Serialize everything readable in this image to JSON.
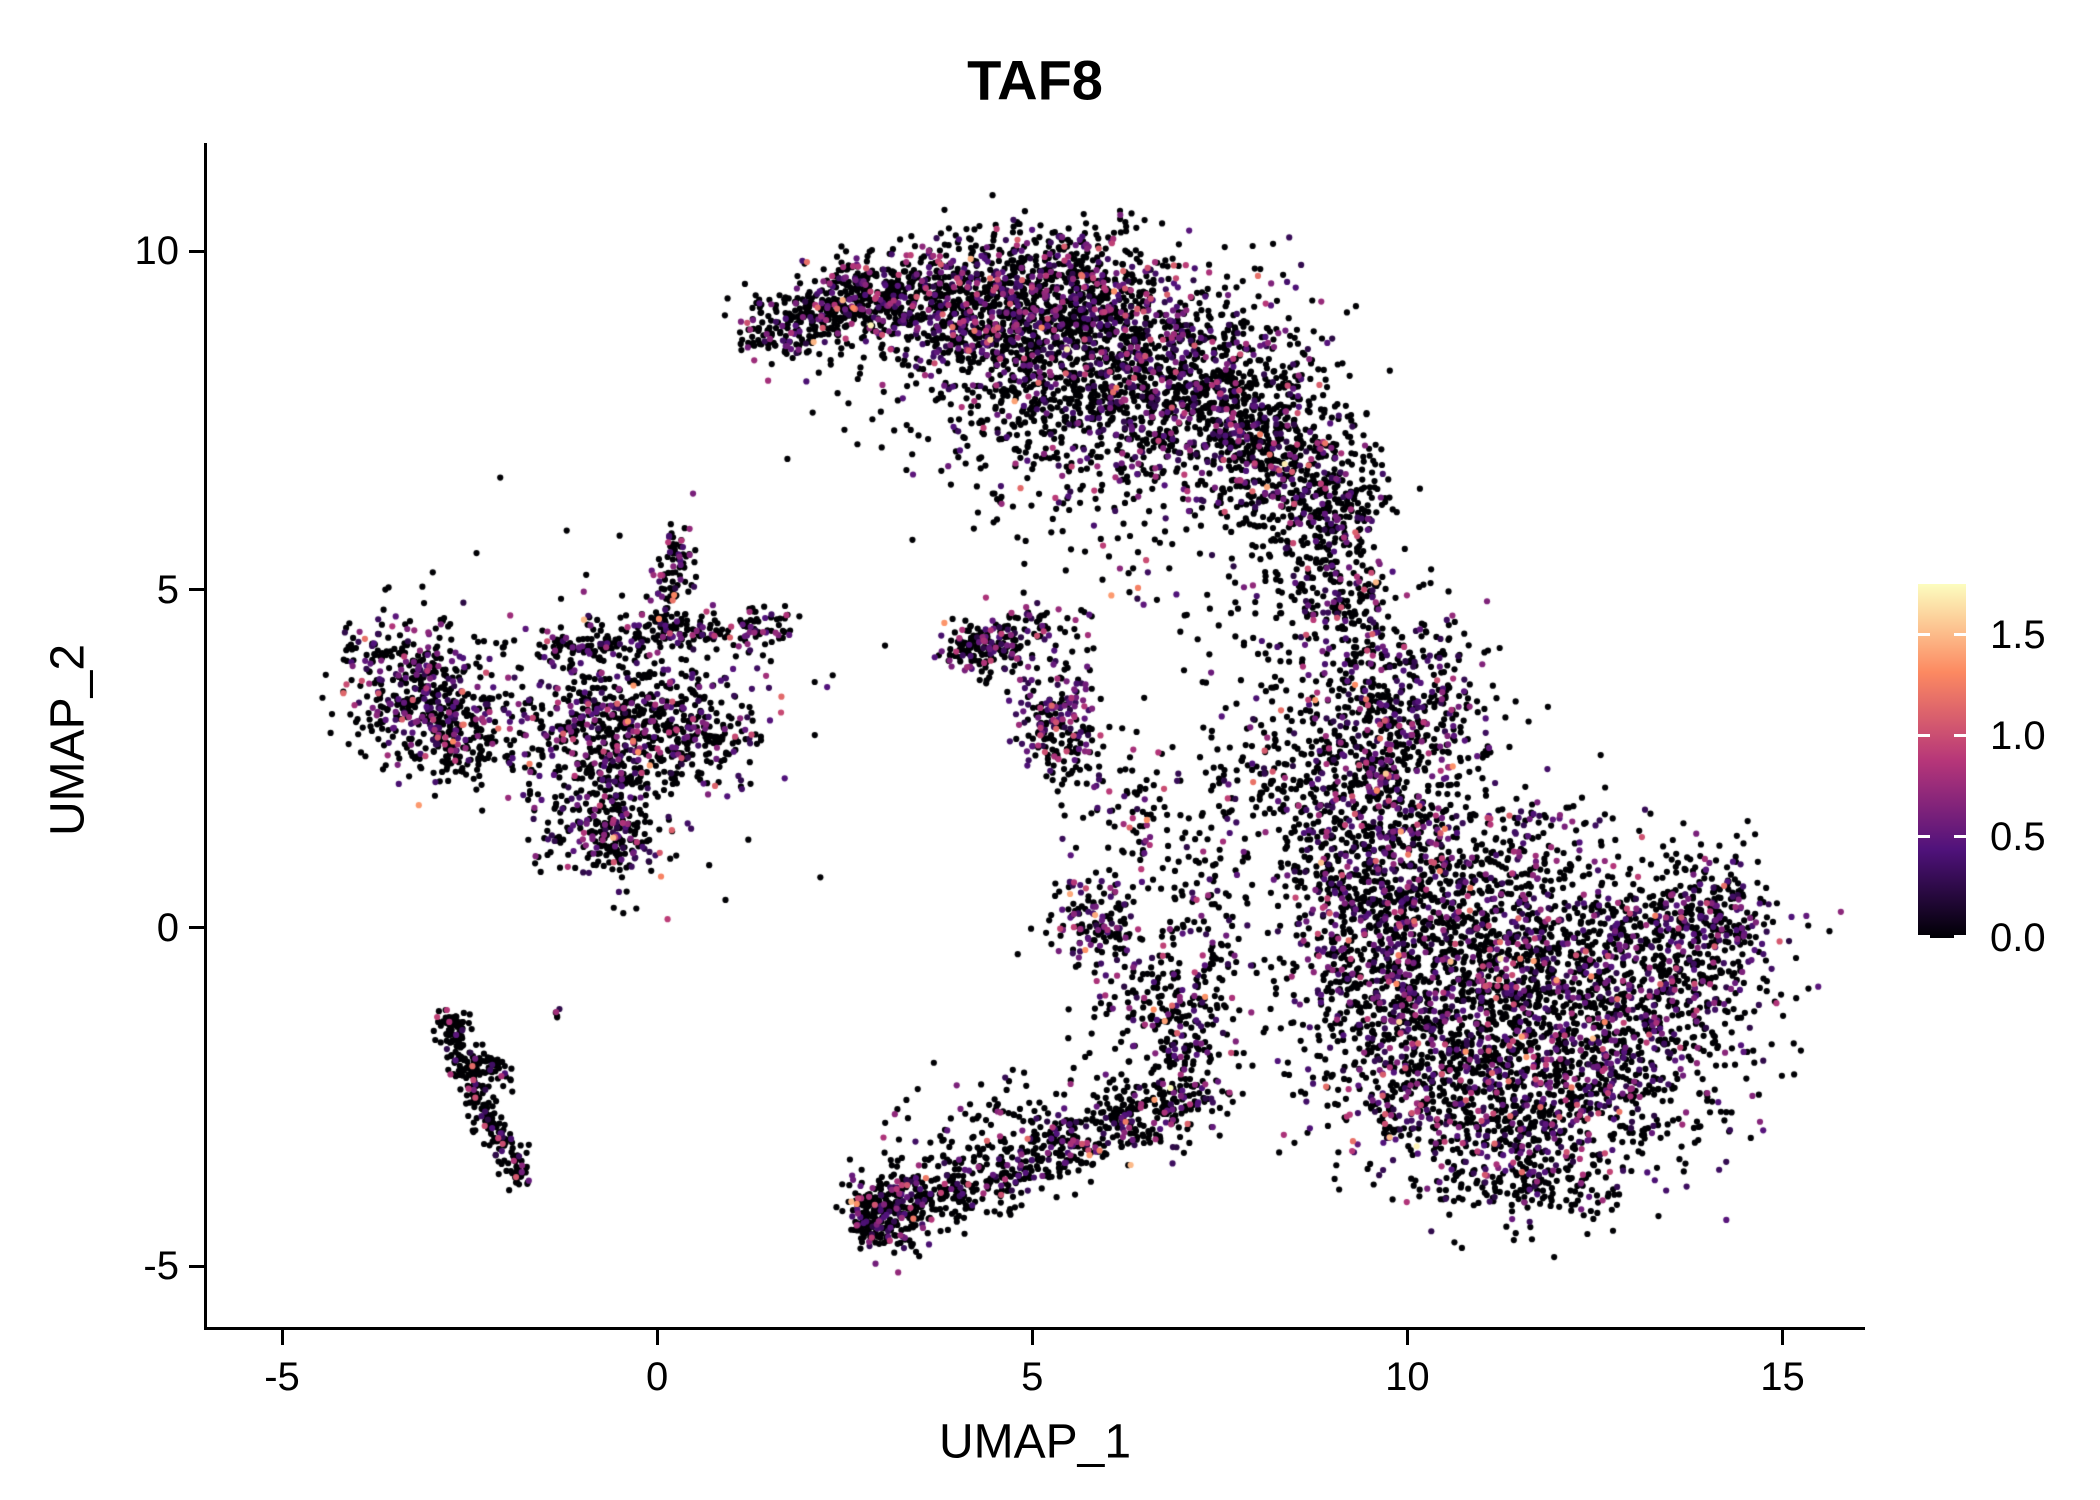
{
  "title": "TAF8",
  "axes": {
    "x": {
      "label": "UMAP_1",
      "ticks": [
        "-5",
        "0",
        "5",
        "10",
        "15"
      ],
      "tick_values": [
        -5,
        0,
        5,
        10,
        15
      ]
    },
    "y": {
      "label": "UMAP_2",
      "ticks": [
        "10",
        "5",
        "0",
        "-5"
      ],
      "tick_values": [
        10,
        5,
        0,
        -5
      ]
    }
  },
  "legend": {
    "ticks": [
      "1.5",
      "1.0",
      "0.5",
      "0.0"
    ],
    "tick_values": [
      1.5,
      1.0,
      0.5,
      0.0
    ],
    "vmin": 0,
    "vmax": 1.75
  },
  "colors": {
    "background": "#ffffff",
    "axis": "#000000",
    "text": "#000000",
    "point_zero": "#000004",
    "colormap": [
      [
        0,
        "#000004"
      ],
      [
        0.25,
        "#50127b"
      ],
      [
        0.5,
        "#b63679"
      ],
      [
        0.75,
        "#fc8961"
      ],
      [
        1,
        "#fcfdbf"
      ]
    ]
  },
  "chart_data": {
    "type": "scatter",
    "title": "TAF8",
    "xlabel": "UMAP_1",
    "ylabel": "UMAP_2",
    "xlim": [
      -6.0,
      16.1
    ],
    "ylim": [
      -5.9,
      11.6
    ],
    "grid": false,
    "legend_position": "right",
    "color_scale": {
      "name": "magma-like",
      "domain": [
        0,
        1.75
      ]
    },
    "point_radius_px": 3.1,
    "seed": 42,
    "colored_value_model": {
      "base": 0.22,
      "spread": 0.38,
      "hot_prob": 0.06,
      "hot_boost": 0.55,
      "max": 1.75
    },
    "clusters": [
      {
        "t": "b",
        "p": [
          [
            1.25,
            8.75
          ],
          [
            2.2,
            9.25
          ],
          [
            3.2,
            9.55
          ],
          [
            4.3,
            9.7
          ],
          [
            5.3,
            9.6
          ],
          [
            6.2,
            9.2
          ]
        ],
        "w": 0.33,
        "n": 480,
        "c": 0.26
      },
      {
        "t": "g",
        "x": 5.9,
        "y": 8.6,
        "sx": 1.05,
        "sy": 0.75,
        "n": 1050,
        "c": 0.3
      },
      {
        "t": "g",
        "x": 7.3,
        "y": 7.8,
        "sx": 0.8,
        "sy": 0.75,
        "n": 680,
        "c": 0.3
      },
      {
        "t": "g",
        "x": 8.3,
        "y": 6.9,
        "sx": 0.55,
        "sy": 0.6,
        "n": 400,
        "c": 0.26
      },
      {
        "t": "g",
        "x": 4.6,
        "y": 9.0,
        "sx": 0.8,
        "sy": 0.45,
        "n": 430,
        "c": 0.28
      },
      {
        "t": "g",
        "x": 3.3,
        "y": 9.2,
        "sx": 0.6,
        "sy": 0.35,
        "n": 260,
        "c": 0.28
      },
      {
        "t": "b",
        "p": [
          [
            1.35,
            8.7
          ],
          [
            2.1,
            9.0
          ],
          [
            2.9,
            9.3
          ]
        ],
        "w": 0.2,
        "n": 160,
        "c": 0.24
      },
      {
        "t": "g",
        "x": 4.8,
        "y": 7.9,
        "sx": 1.2,
        "sy": 0.65,
        "n": 220,
        "c": 0.22
      },
      {
        "t": "g",
        "x": 5.6,
        "y": 6.9,
        "sx": 1.0,
        "sy": 0.5,
        "n": 120,
        "c": 0.2
      },
      {
        "t": "g",
        "x": 5.0,
        "y": 10.0,
        "sx": 0.65,
        "sy": 0.25,
        "n": 80,
        "c": 0.25
      },
      {
        "t": "b",
        "p": [
          [
            8.9,
            6.3
          ],
          [
            9.25,
            5.6
          ],
          [
            9.2,
            4.9
          ],
          [
            9.4,
            4.4
          ]
        ],
        "w": 0.26,
        "n": 150,
        "c": 0.25
      },
      {
        "t": "g",
        "x": 9.05,
        "y": 6.3,
        "sx": 0.35,
        "sy": 0.45,
        "n": 140,
        "c": 0.25
      },
      {
        "t": "g",
        "x": 9.7,
        "y": 3.6,
        "sx": 0.55,
        "sy": 0.75,
        "n": 270,
        "c": 0.3
      },
      {
        "t": "g",
        "x": 9.6,
        "y": 2.2,
        "sx": 0.5,
        "sy": 0.7,
        "n": 250,
        "c": 0.3
      },
      {
        "t": "g",
        "x": 10.25,
        "y": 2.9,
        "sx": 0.5,
        "sy": 0.6,
        "n": 170,
        "c": 0.28
      },
      {
        "t": "g",
        "x": 9.3,
        "y": 0.9,
        "sx": 0.6,
        "sy": 0.6,
        "n": 200,
        "c": 0.28
      },
      {
        "t": "g",
        "x": 8.7,
        "y": 1.9,
        "sx": 0.4,
        "sy": 0.9,
        "n": 110,
        "c": 0.25
      },
      {
        "t": "g",
        "x": 8.85,
        "y": 4.6,
        "sx": 0.45,
        "sy": 0.5,
        "n": 70,
        "c": 0.25
      },
      {
        "t": "g",
        "x": 11.6,
        "y": -0.9,
        "sx": 1.25,
        "sy": 1.0,
        "n": 1250,
        "c": 0.32
      },
      {
        "t": "g",
        "x": 10.4,
        "y": -1.9,
        "sx": 0.9,
        "sy": 0.8,
        "n": 580,
        "c": 0.3
      },
      {
        "t": "g",
        "x": 12.6,
        "y": -2.2,
        "sx": 0.9,
        "sy": 0.7,
        "n": 480,
        "c": 0.3
      },
      {
        "t": "g",
        "x": 13.5,
        "y": -0.3,
        "sx": 0.65,
        "sy": 0.75,
        "n": 430,
        "c": 0.28
      },
      {
        "t": "g",
        "x": 10.3,
        "y": 0.35,
        "sx": 0.8,
        "sy": 0.55,
        "n": 340,
        "c": 0.3
      },
      {
        "t": "g",
        "x": 11.2,
        "y": -3.2,
        "sx": 0.8,
        "sy": 0.5,
        "n": 290,
        "c": 0.26
      },
      {
        "t": "g",
        "x": 14.25,
        "y": 0.3,
        "sx": 0.3,
        "sy": 0.5,
        "n": 120,
        "c": 0.26
      },
      {
        "t": "g",
        "x": 11.8,
        "y": -3.85,
        "sx": 0.5,
        "sy": 0.3,
        "n": 100,
        "c": 0.24
      },
      {
        "t": "g",
        "x": 9.35,
        "y": -0.5,
        "sx": 0.5,
        "sy": 0.8,
        "n": 240,
        "c": 0.28
      },
      {
        "t": "g",
        "x": 10.8,
        "y": 1.3,
        "sx": 0.9,
        "sy": 0.5,
        "n": 170,
        "c": 0.28
      },
      {
        "t": "g",
        "x": -3.25,
        "y": 3.7,
        "sx": 0.45,
        "sy": 0.45,
        "n": 250,
        "c": 0.3
      },
      {
        "t": "g",
        "x": -2.75,
        "y": 2.95,
        "sx": 0.42,
        "sy": 0.42,
        "n": 290,
        "c": 0.3
      },
      {
        "t": "g",
        "x": -0.55,
        "y": 3.05,
        "sx": 0.75,
        "sy": 0.5,
        "n": 500,
        "c": 0.34
      },
      {
        "t": "b",
        "p": [
          [
            -0.1,
            4.35
          ],
          [
            1.7,
            4.5
          ]
        ],
        "w": 0.14,
        "n": 140,
        "c": 0.3
      },
      {
        "t": "b",
        "p": [
          [
            -0.2,
            4.3
          ],
          [
            -1.5,
            4.1
          ]
        ],
        "w": 0.16,
        "n": 100,
        "c": 0.28
      },
      {
        "t": "b",
        "p": [
          [
            0.05,
            4.4
          ],
          [
            0.35,
            5.85
          ]
        ],
        "w": 0.14,
        "n": 100,
        "c": 0.3
      },
      {
        "t": "b",
        "p": [
          [
            -0.55,
            2.3
          ],
          [
            -0.35,
            0.85
          ]
        ],
        "w": 0.2,
        "n": 160,
        "c": 0.28
      },
      {
        "t": "g",
        "x": 0.45,
        "y": 2.8,
        "sx": 0.3,
        "sy": 0.3,
        "n": 100,
        "c": 0.3
      },
      {
        "t": "g",
        "x": -0.95,
        "y": 1.5,
        "sx": 0.35,
        "sy": 0.4,
        "n": 120,
        "c": 0.28
      },
      {
        "t": "g",
        "x": -0.4,
        "y": 3.0,
        "sx": 1.2,
        "sy": 1.05,
        "n": 210,
        "c": 0.26
      },
      {
        "t": "g",
        "x": -3.9,
        "y": 4.15,
        "sx": 0.15,
        "sy": 0.2,
        "n": 30,
        "c": 0.4
      },
      {
        "t": "b",
        "p": [
          [
            -2.75,
            -1.35
          ],
          [
            -2.55,
            -2.1
          ],
          [
            -2.25,
            -2.8
          ],
          [
            -1.95,
            -3.35
          ],
          [
            -1.8,
            -3.8
          ]
        ],
        "w": 0.11,
        "n": 220,
        "c": 0.14
      },
      {
        "t": "b",
        "p": [
          [
            -2.5,
            -1.9
          ],
          [
            -2.0,
            -2.2
          ]
        ],
        "w": 0.1,
        "n": 55,
        "c": 0.15
      },
      {
        "t": "g",
        "x": -2.7,
        "y": -1.45,
        "sx": 0.12,
        "sy": 0.12,
        "n": 40,
        "c": 0.15
      },
      {
        "t": "g",
        "x": -1.35,
        "y": -1.25,
        "sx": 0.05,
        "sy": 0.05,
        "n": 5,
        "c": 0.5
      },
      {
        "t": "g",
        "x": 3.05,
        "y": -4.15,
        "sx": 0.3,
        "sy": 0.3,
        "n": 210,
        "c": 0.26
      },
      {
        "t": "b",
        "p": [
          [
            3.2,
            -4.15
          ],
          [
            4.0,
            -3.9
          ],
          [
            4.9,
            -3.5
          ],
          [
            5.7,
            -3.1
          ]
        ],
        "w": 0.26,
        "n": 360,
        "c": 0.26
      },
      {
        "t": "b",
        "p": [
          [
            5.7,
            -3.1
          ],
          [
            6.5,
            -2.7
          ],
          [
            7.3,
            -2.35
          ]
        ],
        "w": 0.3,
        "n": 270,
        "c": 0.26
      },
      {
        "t": "g",
        "x": 4.6,
        "y": -2.9,
        "sx": 0.7,
        "sy": 0.4,
        "n": 90,
        "c": 0.22
      },
      {
        "t": "g",
        "x": 6.8,
        "y": -1.8,
        "sx": 0.6,
        "sy": 0.5,
        "n": 130,
        "c": 0.24
      },
      {
        "t": "g",
        "x": 2.85,
        "y": -4.35,
        "sx": 0.15,
        "sy": 0.15,
        "n": 60,
        "c": 0.25
      },
      {
        "t": "g",
        "x": 5.35,
        "y": 3.15,
        "sx": 0.28,
        "sy": 0.42,
        "n": 190,
        "c": 0.45
      },
      {
        "t": "g",
        "x": 4.45,
        "y": 4.15,
        "sx": 0.3,
        "sy": 0.22,
        "n": 110,
        "c": 0.32
      },
      {
        "t": "g",
        "x": 5.0,
        "y": 4.45,
        "sx": 0.35,
        "sy": 0.2,
        "n": 60,
        "c": 0.3
      },
      {
        "t": "b",
        "p": [
          [
            3.8,
            4.05
          ],
          [
            4.6,
            4.25
          ]
        ],
        "w": 0.12,
        "n": 50,
        "c": 0.3
      },
      {
        "t": "g",
        "x": 5.6,
        "y": 2.4,
        "sx": 0.3,
        "sy": 0.3,
        "n": 35,
        "c": 0.3
      },
      {
        "t": "g",
        "x": 6.3,
        "y": 1.9,
        "sx": 0.3,
        "sy": 0.4,
        "n": 45,
        "c": 0.28
      },
      {
        "t": "g",
        "x": 5.85,
        "y": 0.15,
        "sx": 0.3,
        "sy": 0.35,
        "n": 130,
        "c": 0.4
      },
      {
        "t": "b",
        "p": [
          [
            6.3,
            -0.6
          ],
          [
            7.0,
            -1.3
          ]
        ],
        "w": 0.3,
        "n": 70,
        "c": 0.25
      },
      {
        "t": "b",
        "p": [
          [
            7.3,
            -2.0
          ],
          [
            7.5,
            -0.5
          ],
          [
            7.4,
            1.0
          ],
          [
            7.6,
            2.2
          ]
        ],
        "w": 0.25,
        "n": 150,
        "c": 0.22
      },
      {
        "t": "g",
        "x": 8.2,
        "y": 2.6,
        "sx": 0.5,
        "sy": 0.6,
        "n": 85,
        "c": 0.25
      },
      {
        "t": "g",
        "x": 6.8,
        "y": 0.6,
        "sx": 0.6,
        "sy": 0.7,
        "n": 85,
        "c": 0.25
      },
      {
        "t": "g",
        "x": 6.5,
        "y": 5.5,
        "sx": 0.8,
        "sy": 0.6,
        "n": 40,
        "c": 0.2
      },
      {
        "t": "g",
        "x": 7.8,
        "y": 4.3,
        "sx": 0.6,
        "sy": 0.7,
        "n": 50,
        "c": 0.2
      },
      {
        "t": "g",
        "x": 8.5,
        "y": 5.4,
        "sx": 0.4,
        "sy": 0.5,
        "n": 40,
        "c": 0.2
      }
    ]
  }
}
